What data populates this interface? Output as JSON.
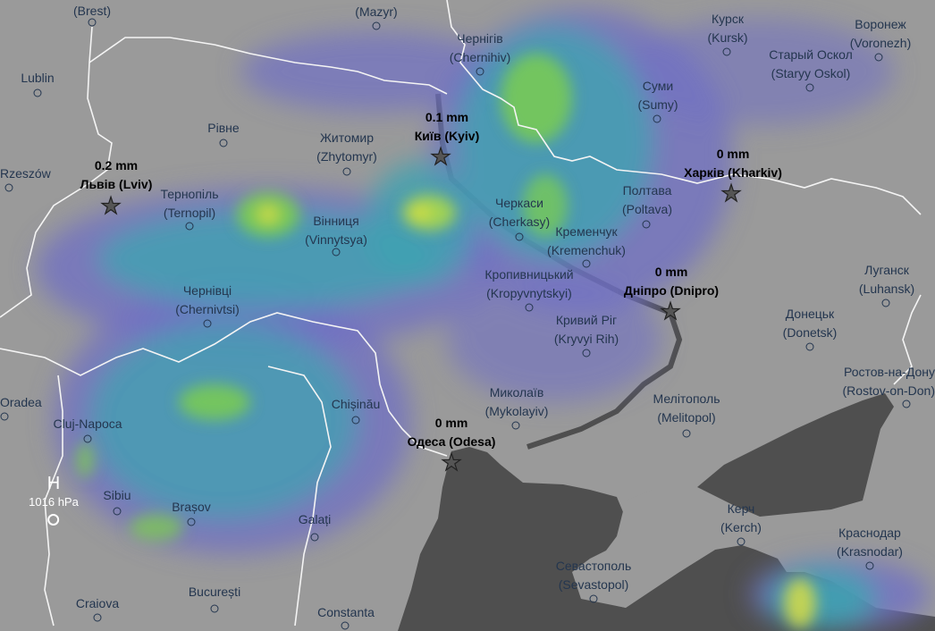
{
  "map": {
    "layer": "rain-accumulation",
    "colors": {
      "land": "#9a9a9a",
      "sea": "#4f4f4f",
      "rain_light": "#6f6fc4",
      "rain_mid": "#3fa2b2",
      "rain_heavy": "#7dd04a",
      "rain_peak": "#e0e040",
      "border": "#ffffff",
      "label": "#24364f"
    },
    "cities": [
      {
        "name": "",
        "latin": "(Brest)"
      },
      {
        "name": "",
        "latin": "(Mazyr)"
      },
      {
        "name": "Lublin",
        "latin": ""
      },
      {
        "name": "Rzeszów",
        "latin": ""
      },
      {
        "name": "Рівне",
        "latin": ""
      },
      {
        "name": "Житомир",
        "latin": "(Zhytomyr)"
      },
      {
        "name": "Тернопіль",
        "latin": "(Ternopil)"
      },
      {
        "name": "Вінниця",
        "latin": "(Vinnytsya)"
      },
      {
        "name": "Чернівці",
        "latin": "(Chernivtsi)"
      },
      {
        "name": "Чернігів",
        "latin": "(Chernihiv)"
      },
      {
        "name": "Курск",
        "latin": "(Kursk)"
      },
      {
        "name": "Воронеж",
        "latin": "(Voronezh)"
      },
      {
        "name": "Старый Оскол",
        "latin": "(Staryy Oskol)"
      },
      {
        "name": "Суми",
        "latin": "(Sumy)"
      },
      {
        "name": "Полтава",
        "latin": "(Poltava)"
      },
      {
        "name": "Черкаси",
        "latin": "(Cherkasy)"
      },
      {
        "name": "Кременчук",
        "latin": "(Kremenchuk)"
      },
      {
        "name": "Кропивницький",
        "latin": "(Kropyvnytskyi)"
      },
      {
        "name": "Кривий Ріг",
        "latin": "(Kryvyi Rih)"
      },
      {
        "name": "Луганск",
        "latin": "(Luhansk)"
      },
      {
        "name": "Донецьк",
        "latin": "(Donetsk)"
      },
      {
        "name": "Ростов-на-Дону",
        "latin": "(Rostov-on-Don)"
      },
      {
        "name": "Мелітополь",
        "latin": "(Melitopol)"
      },
      {
        "name": "Миколаїв",
        "latin": "(Mykolayiv)"
      },
      {
        "name": "Chișinău",
        "latin": ""
      },
      {
        "name": "Oradea",
        "latin": ""
      },
      {
        "name": "Cluj-Napoca",
        "latin": ""
      },
      {
        "name": "Sibiu",
        "latin": ""
      },
      {
        "name": "Brașov",
        "latin": ""
      },
      {
        "name": "Galați",
        "latin": ""
      },
      {
        "name": "București",
        "latin": ""
      },
      {
        "name": "Craiova",
        "latin": ""
      },
      {
        "name": "Constanta",
        "latin": ""
      },
      {
        "name": "Керч",
        "latin": "(Kerch)"
      },
      {
        "name": "Краснодар",
        "latin": "(Krasnodar)"
      },
      {
        "name": "Севастополь",
        "latin": "(Sevastopol)"
      }
    ],
    "forecast_points": [
      {
        "value": "0.2 mm",
        "name": "Львів (Lviv)"
      },
      {
        "value": "0.1 mm",
        "name": "Київ (Kyiv)"
      },
      {
        "value": "0 mm",
        "name": "Харків (Kharkiv)"
      },
      {
        "value": "0 mm",
        "name": "Дніпро (Dnipro)"
      },
      {
        "value": "0 mm",
        "name": "Одеса (Odesa)"
      }
    ],
    "pressure": {
      "symbol": "H",
      "value": "1016 hPa"
    }
  }
}
